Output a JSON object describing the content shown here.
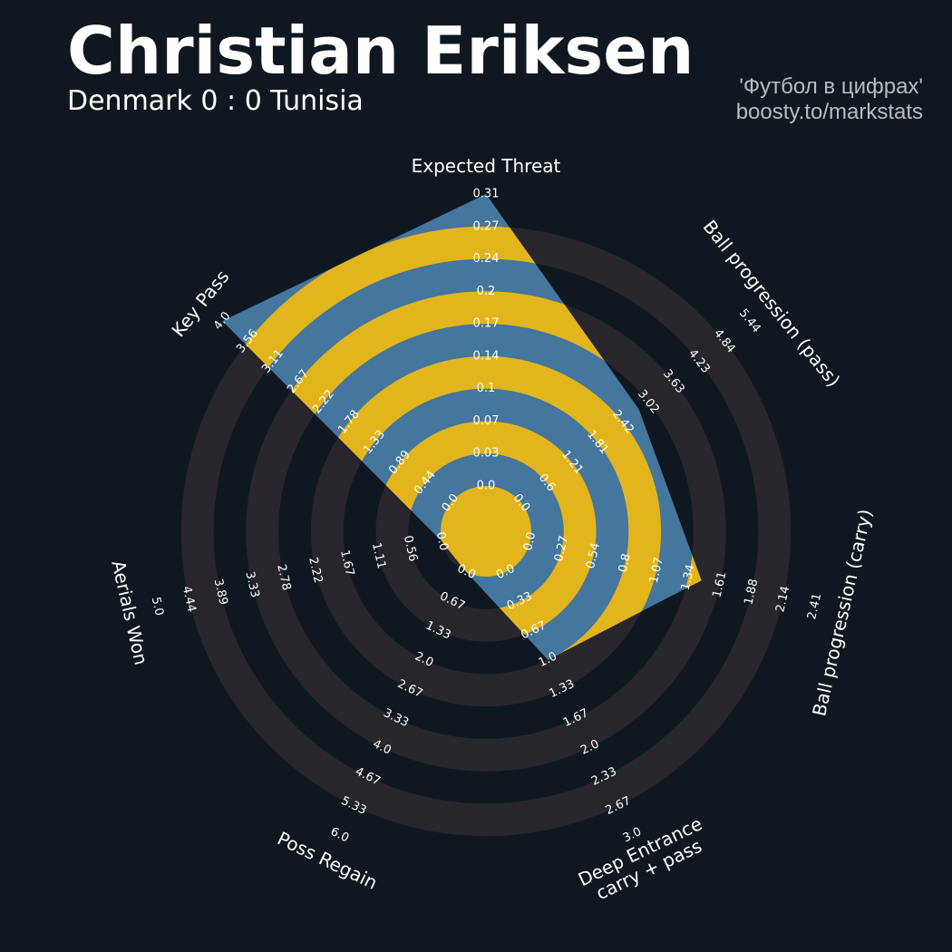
{
  "header": {
    "title": "Christian Eriksen",
    "subtitle": "Denmark 0 : 0 Tunisia",
    "credit_line1": "'Футбол в цифрах'",
    "credit_line2": "boosty.to/markstats"
  },
  "colors": {
    "background": "#0f1820",
    "ring_band": "#28262c",
    "radar_fill": "#44769e",
    "radar_band": "#e2b51d",
    "text": "#ffffff",
    "credit": "#b8bcc0"
  },
  "chart_data": {
    "type": "radar",
    "title": "Christian Eriksen",
    "subtitle": "Denmark 0 : 0 Tunisia",
    "series": [
      {
        "values": [
          0.31,
          2.8,
          1.45,
          1.0,
          0.0,
          0.0,
          4.0
        ]
      }
    ],
    "axes": [
      {
        "label": [
          "Expected Threat"
        ],
        "min": 0.0,
        "max": 0.31,
        "ticks": [
          "0.0",
          "0.03",
          "0.07",
          "0.1",
          "0.14",
          "0.17",
          "0.2",
          "0.24",
          "0.27",
          "0.31"
        ]
      },
      {
        "label": [
          "Ball progression (pass)"
        ],
        "min": 0.0,
        "max": 5.44,
        "ticks": [
          "0.0",
          "0.6",
          "1.21",
          "1.81",
          "2.42",
          "3.02",
          "3.63",
          "4.23",
          "4.84",
          "5.44"
        ]
      },
      {
        "label": [
          "Ball progression (carry)"
        ],
        "min": 0.0,
        "max": 2.41,
        "ticks": [
          "0.0",
          "0.27",
          "0.54",
          "0.8",
          "1.07",
          "1.34",
          "1.61",
          "1.88",
          "2.14",
          "2.41"
        ]
      },
      {
        "label": [
          "Deep Entrance",
          "carry + pass"
        ],
        "min": 0.0,
        "max": 3.0,
        "ticks": [
          "0.0",
          "0.33",
          "0.67",
          "1.0",
          "1.33",
          "1.67",
          "2.0",
          "2.33",
          "2.67",
          "3.0"
        ]
      },
      {
        "label": [
          "Poss Regain"
        ],
        "min": 0.0,
        "max": 6.0,
        "ticks": [
          "0.0",
          "0.67",
          "1.33",
          "2.0",
          "2.67",
          "3.33",
          "4.0",
          "4.67",
          "5.33",
          "6.0"
        ]
      },
      {
        "label": [
          "Aerials Won"
        ],
        "min": 0.0,
        "max": 5.0,
        "ticks": [
          "0.0",
          "0.56",
          "1.11",
          "1.67",
          "2.22",
          "2.78",
          "3.33",
          "3.89",
          "4.44",
          "5.0"
        ]
      },
      {
        "label": [
          "Key Pass"
        ],
        "min": 0.0,
        "max": 4.0,
        "ticks": [
          "0.0",
          "0.44",
          "0.89",
          "1.33",
          "1.78",
          "2.22",
          "2.67",
          "3.11",
          "3.56",
          "4.0"
        ]
      }
    ]
  }
}
